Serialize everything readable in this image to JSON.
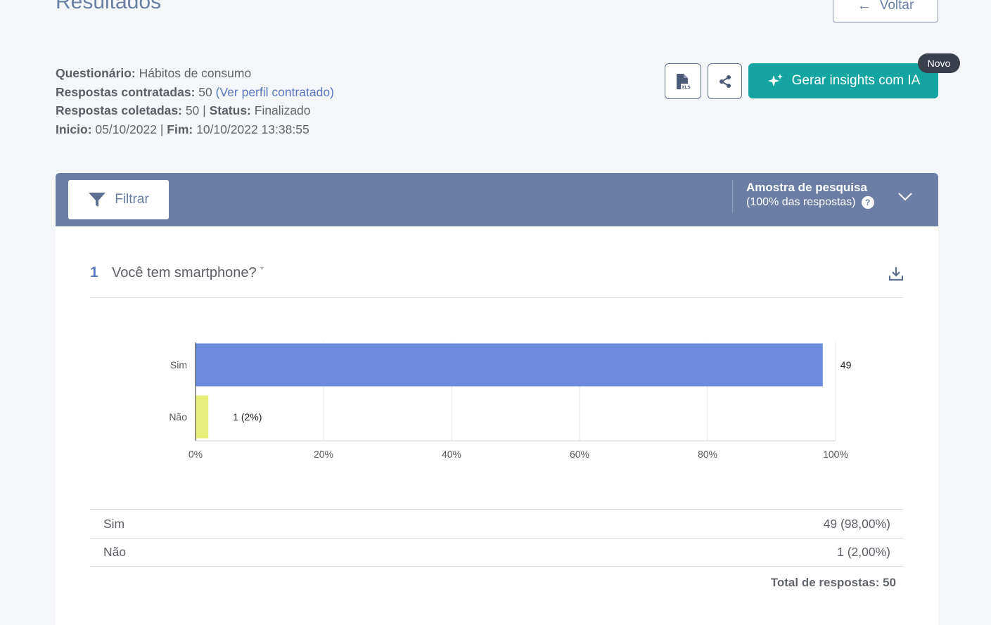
{
  "header": {
    "title": "Resultados",
    "back_label": "Voltar"
  },
  "survey": {
    "questionario_label": "Questionário:",
    "questionario_value": "Hábitos de consumo",
    "contratadas_label": "Respostas contratadas:",
    "contratadas_value": "50",
    "perfil_link": "(Ver perfil contratado)",
    "coletadas_label": "Respostas coletadas:",
    "coletadas_value": "50",
    "status_label": "Status:",
    "status_value": "Finalizado",
    "inicio_label": "Inicio:",
    "inicio_value": "05/10/2022",
    "fim_label": "Fim:",
    "fim_value": "10/10/2022 13:38:55"
  },
  "actions": {
    "xls_icon": "xls-file-icon",
    "share_icon": "share-icon",
    "ai_label": "Gerar insights com IA",
    "ai_icon": "sparkle-icon",
    "new_badge": "Novo"
  },
  "filter_bar": {
    "filter_label": "Filtrar",
    "sample_title": "Amostra de pesquisa",
    "sample_subtitle": "(100% das respostas)",
    "help": "?"
  },
  "question": {
    "number": "1",
    "text": "Você tem smartphone?",
    "required_mark": "*"
  },
  "chart_data": {
    "type": "bar",
    "orientation": "horizontal",
    "categories": [
      "Sim",
      "Não"
    ],
    "values": [
      98,
      2
    ],
    "value_labels": [
      "49",
      "1 (2%)"
    ],
    "colors": [
      "#6b8cdc",
      "#e8ee7a"
    ],
    "xlim": [
      0,
      100
    ],
    "xticks": [
      "0%",
      "20%",
      "40%",
      "60%",
      "80%",
      "100%"
    ],
    "grid": true
  },
  "results_table": {
    "rows": [
      {
        "label": "Sim",
        "value": "49 (98,00%)"
      },
      {
        "label": "Não",
        "value": "1 (2,00%)"
      }
    ],
    "total": "Total de respostas: 50"
  }
}
